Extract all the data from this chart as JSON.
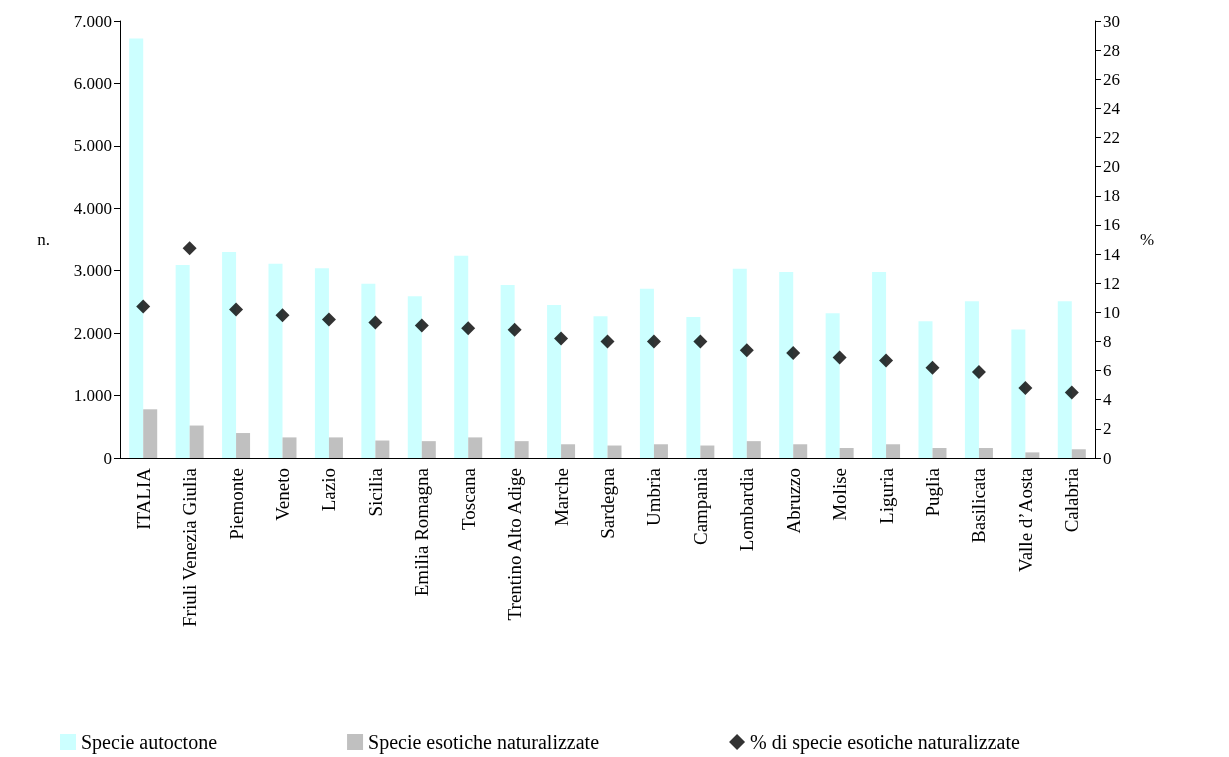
{
  "chart_data": {
    "type": "bar",
    "categories": [
      "ITALIA",
      "Friuli Venezia Giulia",
      "Piemonte",
      "Veneto",
      "Lazio",
      "Sicilia",
      "Emilia Romagna",
      "Toscana",
      "Trentino Alto Adige",
      "Marche",
      "Sardegna",
      "Umbria",
      "Campania",
      "Lombardia",
      "Abruzzo",
      "Molise",
      "Liguria",
      "Puglia",
      "Basilicata",
      "Valle d’Aosta",
      "Calabria"
    ],
    "series": [
      {
        "name": "Specie autoctone",
        "color": "#ccffff",
        "values": [
          6720,
          3090,
          3300,
          3110,
          3040,
          2790,
          2590,
          3240,
          2770,
          2450,
          2270,
          2710,
          2260,
          3030,
          2980,
          2320,
          2980,
          2190,
          2510,
          2060,
          2510
        ]
      },
      {
        "name": "Specie esotiche naturalizzate",
        "color": "#c0c0c0",
        "values": [
          780,
          520,
          400,
          330,
          330,
          280,
          270,
          330,
          270,
          220,
          200,
          220,
          200,
          270,
          220,
          160,
          220,
          160,
          160,
          90,
          140
        ]
      },
      {
        "name": "% di specie esotiche naturalizzate",
        "type": "scatter",
        "axis": "y2",
        "color": "#000000",
        "marker": "diamond",
        "values": [
          10.4,
          14.4,
          10.2,
          9.8,
          9.5,
          9.3,
          9.1,
          8.9,
          8.8,
          8.2,
          8.0,
          8.0,
          8.0,
          7.4,
          7.2,
          6.9,
          6.7,
          6.2,
          5.9,
          4.8,
          4.5
        ]
      }
    ],
    "ylabel": "n.",
    "y2label": "%",
    "ylim": [
      0,
      7000
    ],
    "yticks": [
      0,
      {
        "value": 1000,
        "label": "1.000"
      },
      {
        "value": 2000,
        "label": "2.000"
      },
      {
        "value": 3000,
        "label": "3.000"
      },
      {
        "value": 4000,
        "label": "4.000"
      },
      {
        "value": 5000,
        "label": "5.000"
      },
      {
        "value": 6000,
        "label": "6.000"
      },
      {
        "value": 7000,
        "label": "7.000"
      }
    ],
    "y2lim": [
      0,
      30
    ],
    "y2ticks": [
      0,
      2,
      4,
      6,
      8,
      10,
      12,
      14,
      16,
      18,
      20,
      22,
      24,
      26,
      28,
      30
    ],
    "grid": false,
    "legend": "bottom"
  }
}
